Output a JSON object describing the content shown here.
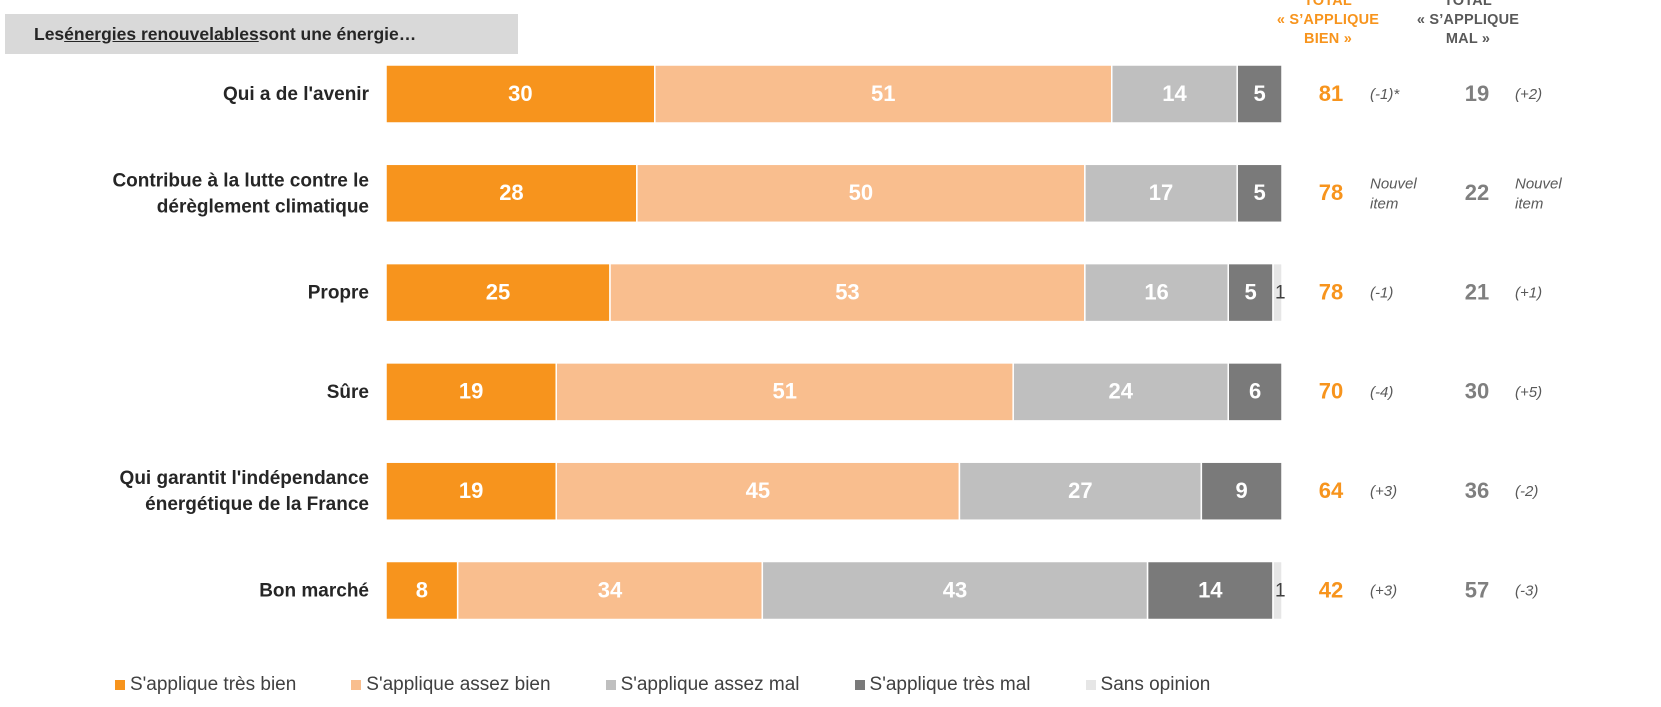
{
  "header": {
    "title_pre": "Les ",
    "title_underlined": "énergies renouvelables",
    "title_post": " sont une énergie…"
  },
  "columns": {
    "bien": {
      "line1": "TOTAL",
      "line2": "« S’APPLIQUE",
      "line3": "BIEN »"
    },
    "mal": {
      "line1": "TOTAL",
      "line2": "« S’APPLIQUE",
      "line3": "MAL »"
    }
  },
  "colors": {
    "tres_bien": "#f7941d",
    "assez_bien": "#f9be8e",
    "assez_mal": "#bfbfbf",
    "tres_mal": "#7a7a7a",
    "sans_opinion": "#e6e6e6",
    "total_bien": "#f7941d",
    "total_mal": "#7f7f7f"
  },
  "chart_data": {
    "type": "bar",
    "orientation": "horizontal",
    "stacked": true,
    "xlim": [
      0,
      100
    ],
    "categories": [
      "Qui a de l'avenir",
      "Contribue à la lutte contre le dérèglement climatique",
      "Propre",
      "Sûre",
      "Qui garantit l'indépendance énergétique de la France",
      "Bon marché"
    ],
    "category_lines": [
      [
        "Qui a de l'avenir"
      ],
      [
        "Contribue à la lutte contre le",
        "dérèglement climatique"
      ],
      [
        "Propre"
      ],
      [
        "Sûre"
      ],
      [
        "Qui garantit l'indépendance",
        "énergétique de la France"
      ],
      [
        "Bon marché"
      ]
    ],
    "series": [
      {
        "name": "S'applique très bien",
        "color_key": "tres_bien",
        "values": [
          30,
          28,
          25,
          19,
          19,
          8
        ]
      },
      {
        "name": "S'applique assez bien",
        "color_key": "assez_bien",
        "values": [
          51,
          50,
          53,
          51,
          45,
          34
        ]
      },
      {
        "name": "S'applique assez mal",
        "color_key": "assez_mal",
        "values": [
          14,
          17,
          16,
          24,
          27,
          43
        ]
      },
      {
        "name": "S'applique très mal",
        "color_key": "tres_mal",
        "values": [
          5,
          5,
          5,
          6,
          9,
          14
        ]
      },
      {
        "name": "Sans opinion",
        "color_key": "sans_opinion",
        "values": [
          0,
          0,
          1,
          0,
          0,
          1
        ]
      }
    ],
    "total_bien": [
      81,
      78,
      78,
      70,
      64,
      42
    ],
    "total_bien_change": [
      [
        "(-1)*"
      ],
      [
        "Nouvel",
        "item"
      ],
      [
        "(-1)"
      ],
      [
        "(-4)"
      ],
      [
        "(+3)"
      ],
      [
        "(+3)"
      ]
    ],
    "total_mal": [
      19,
      22,
      21,
      30,
      36,
      57
    ],
    "total_mal_change": [
      [
        "(+2)"
      ],
      [
        "Nouvel",
        "item"
      ],
      [
        "(+1)"
      ],
      [
        "(+5)"
      ],
      [
        "(-2)"
      ],
      [
        "(-3)"
      ]
    ],
    "legend_position": "bottom"
  }
}
